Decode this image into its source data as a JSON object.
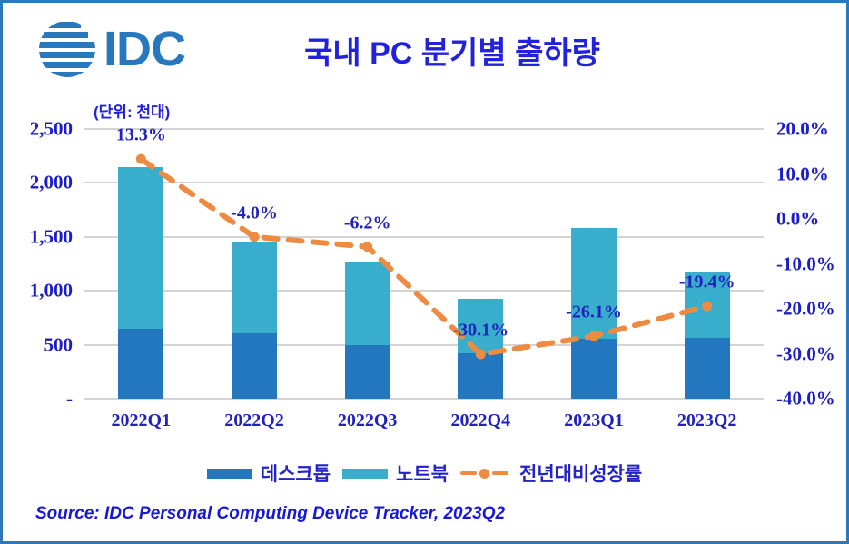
{
  "header": {
    "logo_text": "IDC",
    "title": "국내 PC 분기별 출하량",
    "unit_label": "(단위: 천대)"
  },
  "legend": {
    "items": [
      {
        "label": "데스크톱",
        "color": "#2277BE",
        "type": "bar"
      },
      {
        "label": "노트북",
        "color": "#38AECC",
        "type": "bar"
      },
      {
        "label": "전년대비성장률",
        "color": "#EE8B43",
        "type": "line"
      }
    ],
    "position": "bottom"
  },
  "footer": {
    "source": "Source: IDC Personal Computing Device Tracker, 2023Q2"
  },
  "colors": {
    "border": "#2A79BD",
    "logo": "#2878BE",
    "title": "#2222DD",
    "axis_labels": "#1C1CC8",
    "data_labels": "#2121BE",
    "gridline": "#D4D4D4",
    "desktop_bar": "#2277BE",
    "notebook_bar": "#38AECC",
    "growth_line": "#EE8B43",
    "background": "#FFFFFF"
  },
  "chart_data": {
    "type": "combo-stacked-bar-line",
    "title": "국내 PC 분기별 출하량",
    "unit": "천대 (thousand units)",
    "categories": [
      "2022Q1",
      "2022Q2",
      "2022Q3",
      "2022Q4",
      "2023Q1",
      "2023Q2"
    ],
    "bar_series": [
      {
        "name": "데스크톱",
        "color": "#2277BE",
        "values": [
          650,
          610,
          500,
          420,
          555,
          560
        ]
      },
      {
        "name": "노트북",
        "color": "#38AECC",
        "values": [
          1500,
          835,
          770,
          505,
          1030,
          610
        ]
      }
    ],
    "bar_totals": [
      2150,
      1445,
      1270,
      925,
      1585,
      1170
    ],
    "line_series": {
      "name": "전년대비성장률",
      "color": "#EE8B43",
      "style": "dashed",
      "values": [
        13.3,
        -4.0,
        -6.2,
        -30.1,
        -26.1,
        -19.4
      ],
      "labels": [
        "13.3%",
        "-4.0%",
        "-6.2%",
        "-30.1%",
        "-26.1%",
        "-19.4%"
      ]
    },
    "axis_left": {
      "min": 0,
      "max": 2500,
      "step": 500,
      "ticks": [
        "2,500",
        "2,000",
        "1,500",
        "1,000",
        "500",
        "-"
      ]
    },
    "axis_right": {
      "min": -40,
      "max": 20,
      "step": 10,
      "ticks": [
        "20.0%",
        "10.0%",
        "0.0%",
        "-10.0%",
        "-20.0%",
        "-30.0%",
        "-40.0%"
      ]
    },
    "grid": "horizontal",
    "legend_position": "bottom"
  }
}
